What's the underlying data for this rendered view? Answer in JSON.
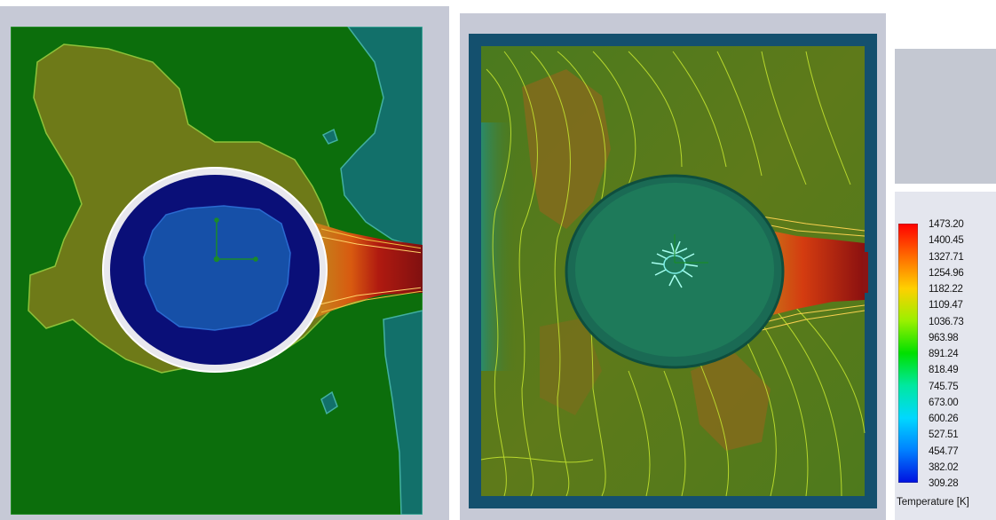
{
  "legend": {
    "title": "Temperature [K]",
    "ticks": [
      "1473.20",
      "1400.45",
      "1327.71",
      "1254.96",
      "1182.22",
      "1109.47",
      "1036.73",
      "963.98",
      "891.24",
      "818.49",
      "745.75",
      "673.00",
      "600.26",
      "527.51",
      "454.77",
      "382.02",
      "309.28"
    ],
    "max": 1473.2,
    "min": 309.28,
    "colors": [
      "#ff0000",
      "#ff6a00",
      "#ffd000",
      "#9af000",
      "#00e000",
      "#00e8a0",
      "#00d8ff",
      "#0080ff",
      "#0010e0"
    ]
  },
  "left_view": {
    "field_color": "#0c6e0c",
    "warm_region_color": "#6e7a18",
    "cool_region_color": "#12706a",
    "ring_color": "#e8e8ee",
    "inner_color": "#0a0f78",
    "core_color": "#1650a8"
  },
  "right_view": {
    "frame_color": "#14506e",
    "field_color": "#4e7a1c",
    "warm_color": "#8a6a1c",
    "cylinder_color": "#1e7a5a",
    "isoline_color": "#c8e830"
  }
}
